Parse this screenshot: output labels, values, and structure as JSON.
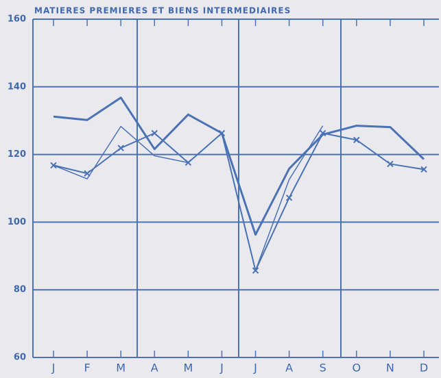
{
  "chart_data": {
    "type": "line",
    "title": "MATIERES PREMIERES ET BIENS INTERMEDIAIRES",
    "categories": [
      "J",
      "F",
      "M",
      "A",
      "M",
      "J",
      "J",
      "A",
      "S",
      "O",
      "N",
      "D"
    ],
    "series": [
      {
        "color": "#4a72b4",
        "width": 3,
        "markers": false,
        "values": [
          131.2,
          130.2,
          136.8,
          121.6,
          131.8,
          126.3,
          96.3,
          115.8,
          125.9,
          128.5,
          128.1,
          118.6
        ]
      },
      {
        "color": "#4a72b4",
        "width": 2,
        "markers": true,
        "values": [
          116.8,
          114.4,
          121.9,
          126.3,
          117.6,
          126.3,
          85.7,
          107.2,
          126.3,
          124.3,
          117.2,
          115.6
        ]
      },
      {
        "color": "#4a72b4",
        "width": 1.5,
        "markers": false,
        "values": [
          116.8,
          112.8,
          128.3,
          119.6,
          117.6,
          126.3,
          85.7,
          112.6,
          128.5,
          null,
          null,
          null
        ]
      }
    ],
    "ylim": [
      60,
      160
    ],
    "yticks": [
      60,
      80,
      100,
      120,
      140,
      160
    ],
    "grid": true
  }
}
